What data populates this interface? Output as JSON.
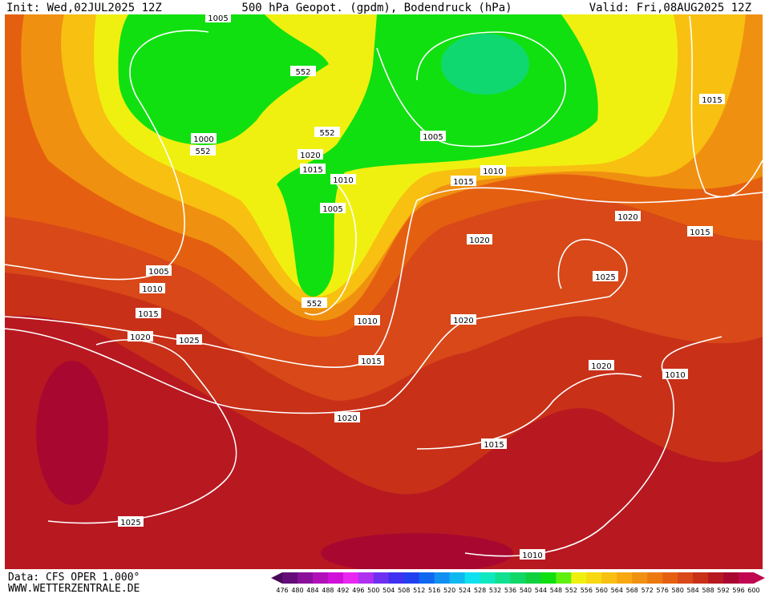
{
  "header": {
    "init": "Init: Wed,02JUL2025 12Z",
    "title": "500 hPa Geopot. (gpdm), Bodendruck (hPa)",
    "valid": "Valid: Fri,08AUG2025 12Z"
  },
  "footer": {
    "source": "Data: CFS OPER 1.000°",
    "site": "WWW.WETTERZENTRALE.DE"
  },
  "legend": {
    "ticks": [
      476,
      480,
      484,
      488,
      492,
      496,
      500,
      504,
      508,
      512,
      516,
      520,
      524,
      528,
      532,
      536,
      540,
      544,
      548,
      552,
      556,
      560,
      564,
      568,
      572,
      576,
      580,
      584,
      588,
      592,
      596,
      600
    ],
    "colors": [
      "#4a0858",
      "#640c78",
      "#8a0f99",
      "#b010b8",
      "#d010d8",
      "#e828f0",
      "#b030f0",
      "#7030f0",
      "#4030f0",
      "#2040f0",
      "#1068f0",
      "#1090f0",
      "#10b8f0",
      "#10e0f0",
      "#10e8c0",
      "#10e090",
      "#10d868",
      "#10d040",
      "#10e010",
      "#60f010",
      "#f0f010",
      "#f8d810",
      "#f8c010",
      "#f8a810",
      "#f09010",
      "#ec7810",
      "#e46010",
      "#d84818",
      "#c83018",
      "#b81820",
      "#a80830",
      "#c00850"
    ]
  },
  "isobars": [
    "1005",
    "1000",
    "552",
    "552",
    "552",
    "1005",
    "1020",
    "1015",
    "1010",
    "1005",
    "552",
    "1005",
    "1010",
    "1015",
    "1020",
    "1025",
    "1010",
    "1015",
    "1010",
    "1015",
    "1020",
    "1020",
    "1020",
    "1015",
    "1025",
    "1020",
    "1010",
    "1015",
    "1015",
    "1025",
    "1010",
    "1020"
  ]
}
